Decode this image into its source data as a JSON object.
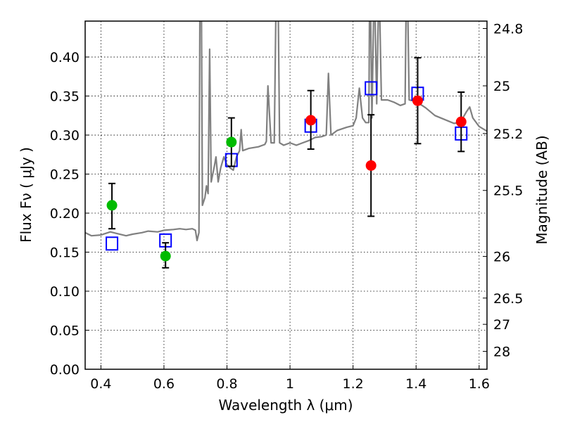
{
  "chart_data": {
    "type": "scatter",
    "xlabel": "Wavelength  λ (μm)",
    "ylabel": "Flux  Fν  ( μJy )",
    "ylabel_right": "Magnitude (AB)",
    "xlim": [
      0.35,
      1.625
    ],
    "ylim": [
      0,
      0.446
    ],
    "grid": true,
    "xticks": [
      0.4,
      0.6,
      0.8,
      1.0,
      1.2,
      1.4,
      1.6
    ],
    "xtick_labels": [
      "0.4",
      "0.6",
      "0.8",
      "1",
      "1.2",
      "1.4",
      "1.6"
    ],
    "yticks": [
      0,
      0.05,
      0.1,
      0.15,
      0.2,
      0.25,
      0.3,
      0.35,
      0.4
    ],
    "ytick_labels": [
      "0.00",
      "0.05",
      "0.10",
      "0.15",
      "0.20",
      "0.25",
      "0.30",
      "0.35",
      "0.40"
    ],
    "right_ticks_mag": [
      24.8,
      25,
      25.2,
      25.5,
      26,
      26.5,
      27,
      28
    ],
    "right_tick_labels": [
      "24.8",
      "25",
      "25.2",
      "25.5",
      "26",
      "26.5",
      "27",
      "28"
    ],
    "colors": {
      "spectrum": "#808080",
      "optical": "#00bb00",
      "nir": "#ff0000",
      "model": "#0000ff",
      "error": "#000000"
    },
    "spectrum": [
      [
        0.35,
        0.175
      ],
      [
        0.37,
        0.171
      ],
      [
        0.4,
        0.172
      ],
      [
        0.43,
        0.176
      ],
      [
        0.45,
        0.174
      ],
      [
        0.48,
        0.171
      ],
      [
        0.5,
        0.173
      ],
      [
        0.53,
        0.175
      ],
      [
        0.55,
        0.177
      ],
      [
        0.58,
        0.176
      ],
      [
        0.6,
        0.178
      ],
      [
        0.63,
        0.179
      ],
      [
        0.65,
        0.18
      ],
      [
        0.67,
        0.179
      ],
      [
        0.69,
        0.18
      ],
      [
        0.7,
        0.178
      ],
      [
        0.705,
        0.165
      ],
      [
        0.711,
        0.175
      ],
      [
        0.714,
        0.45
      ],
      [
        0.719,
        0.45
      ],
      [
        0.722,
        0.21
      ],
      [
        0.73,
        0.22
      ],
      [
        0.735,
        0.235
      ],
      [
        0.74,
        0.225
      ],
      [
        0.745,
        0.41
      ],
      [
        0.75,
        0.24
      ],
      [
        0.76,
        0.26
      ],
      [
        0.765,
        0.272
      ],
      [
        0.772,
        0.24
      ],
      [
        0.78,
        0.258
      ],
      [
        0.79,
        0.272
      ],
      [
        0.8,
        0.262
      ],
      [
        0.81,
        0.258
      ],
      [
        0.82,
        0.255
      ],
      [
        0.83,
        0.272
      ],
      [
        0.84,
        0.28
      ],
      [
        0.845,
        0.307
      ],
      [
        0.85,
        0.28
      ],
      [
        0.87,
        0.283
      ],
      [
        0.9,
        0.285
      ],
      [
        0.92,
        0.288
      ],
      [
        0.925,
        0.292
      ],
      [
        0.93,
        0.363
      ],
      [
        0.94,
        0.29
      ],
      [
        0.95,
        0.29
      ],
      [
        0.955,
        0.45
      ],
      [
        0.963,
        0.45
      ],
      [
        0.967,
        0.29
      ],
      [
        0.98,
        0.287
      ],
      [
        1.0,
        0.29
      ],
      [
        1.02,
        0.287
      ],
      [
        1.04,
        0.29
      ],
      [
        1.06,
        0.293
      ],
      [
        1.08,
        0.297
      ],
      [
        1.1,
        0.298
      ],
      [
        1.115,
        0.3
      ],
      [
        1.122,
        0.379
      ],
      [
        1.13,
        0.3
      ],
      [
        1.15,
        0.306
      ],
      [
        1.18,
        0.31
      ],
      [
        1.2,
        0.312
      ],
      [
        1.21,
        0.322
      ],
      [
        1.22,
        0.36
      ],
      [
        1.23,
        0.322
      ],
      [
        1.24,
        0.316
      ],
      [
        1.25,
        0.316
      ],
      [
        1.252,
        0.45
      ],
      [
        1.256,
        0.45
      ],
      [
        1.26,
        0.322
      ],
      [
        1.265,
        0.45
      ],
      [
        1.27,
        0.45
      ],
      [
        1.275,
        0.34
      ],
      [
        1.28,
        0.45
      ],
      [
        1.285,
        0.45
      ],
      [
        1.29,
        0.345
      ],
      [
        1.31,
        0.345
      ],
      [
        1.33,
        0.342
      ],
      [
        1.35,
        0.338
      ],
      [
        1.365,
        0.34
      ],
      [
        1.368,
        0.45
      ],
      [
        1.374,
        0.45
      ],
      [
        1.378,
        0.345
      ],
      [
        1.4,
        0.343
      ],
      [
        1.43,
        0.335
      ],
      [
        1.46,
        0.325
      ],
      [
        1.49,
        0.32
      ],
      [
        1.52,
        0.315
      ],
      [
        1.54,
        0.316
      ],
      [
        1.56,
        0.33
      ],
      [
        1.57,
        0.336
      ],
      [
        1.58,
        0.322
      ],
      [
        1.6,
        0.311
      ],
      [
        1.625,
        0.305
      ]
    ],
    "observed": [
      {
        "x": 0.435,
        "y": 0.21,
        "lo": 0.18,
        "hi": 0.238,
        "band": "optical"
      },
      {
        "x": 0.605,
        "y": 0.145,
        "lo": 0.13,
        "hi": 0.162,
        "band": "optical"
      },
      {
        "x": 0.814,
        "y": 0.291,
        "lo": 0.26,
        "hi": 0.322,
        "band": "optical"
      },
      {
        "x": 1.066,
        "y": 0.319,
        "lo": 0.282,
        "hi": 0.357,
        "band": "nir"
      },
      {
        "x": 1.257,
        "y": 0.261,
        "lo": 0.196,
        "hi": 0.326,
        "band": "nir"
      },
      {
        "x": 1.405,
        "y": 0.344,
        "lo": 0.289,
        "hi": 0.399,
        "band": "nir"
      },
      {
        "x": 1.543,
        "y": 0.317,
        "lo": 0.279,
        "hi": 0.355,
        "band": "nir"
      }
    ],
    "model": [
      {
        "x": 0.435,
        "y": 0.161
      },
      {
        "x": 0.605,
        "y": 0.165
      },
      {
        "x": 0.814,
        "y": 0.268
      },
      {
        "x": 1.066,
        "y": 0.312
      },
      {
        "x": 1.257,
        "y": 0.36
      },
      {
        "x": 1.405,
        "y": 0.353
      },
      {
        "x": 1.543,
        "y": 0.302
      }
    ]
  }
}
